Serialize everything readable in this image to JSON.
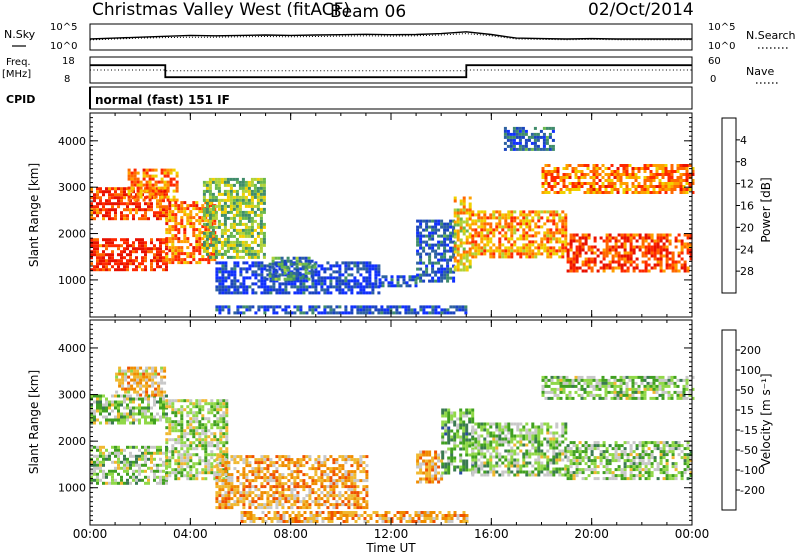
{
  "header": {
    "title": "Christmas Valley West (fitACF)",
    "beam": "Beam 06",
    "date": "02/Oct/2014"
  },
  "strips": {
    "nsky_label": "N.Sky",
    "nsky_ticks": [
      "10^5",
      "10^0"
    ],
    "nsearch_label": "N.Search",
    "nsearch_ticks": [
      "10^5",
      "10^0"
    ],
    "freq_label": "Freq.",
    "freq_unit": "[MHz]",
    "freq_ticks": [
      "18",
      "8"
    ],
    "nave_label": "Nave",
    "nave_ticks": [
      "60",
      "0"
    ],
    "cpid_label": "CPID",
    "cpid_text": "normal (fast) 151 IF"
  },
  "chart_data": [
    {
      "type": "line",
      "title": "",
      "series": [
        {
          "name": "N.Sky",
          "style": "solid",
          "values": [
            0.5,
            0.55,
            0.6,
            0.65,
            0.7,
            0.68,
            0.7,
            0.72,
            0.7,
            0.72,
            0.74,
            0.76,
            0.74,
            0.75,
            0.8,
            0.9,
            0.75,
            0.55,
            0.52,
            0.5,
            0.52,
            0.5,
            0.5,
            0.5,
            0.5
          ]
        },
        {
          "name": "N.Search",
          "style": "dotted",
          "values": [
            0.45,
            0.5,
            0.55,
            0.58,
            0.6,
            0.6,
            0.62,
            0.64,
            0.62,
            0.64,
            0.66,
            0.68,
            0.66,
            0.68,
            0.72,
            0.8,
            0.68,
            0.5,
            0.48,
            0.46,
            0.48,
            0.46,
            0.46,
            0.46,
            0.46
          ]
        }
      ],
      "x": [
        0,
        1,
        2,
        3,
        4,
        5,
        6,
        7,
        8,
        9,
        10,
        11,
        12,
        13,
        14,
        15,
        16,
        17,
        18,
        19,
        20,
        21,
        22,
        23,
        24
      ]
    },
    {
      "type": "line",
      "title": "",
      "series": [
        {
          "name": "Freq.",
          "style": "solid",
          "steps": [
            [
              0,
              3,
              15
            ],
            [
              3,
              15,
              10
            ],
            [
              15,
              24,
              15
            ]
          ]
        },
        {
          "name": "Nave",
          "style": "dotted",
          "steps": [
            [
              0,
              3,
              30
            ],
            [
              3,
              15,
              28
            ],
            [
              15,
              24,
              30
            ]
          ]
        }
      ],
      "ylim_freq": [
        8,
        18
      ],
      "ylim_nave": [
        0,
        60
      ]
    },
    {
      "type": "heatmap",
      "title": "",
      "ylabel": "Slant Range [km]",
      "yticks": [
        "1000",
        "2000",
        "3000",
        "4000"
      ],
      "ylim": [
        200,
        4600
      ],
      "xlim": [
        0,
        24
      ],
      "colorbar": {
        "label": "Power [dB]",
        "ticks": [
          "4",
          "8",
          "12",
          "16",
          "20",
          "24",
          "28"
        ],
        "colors": [
          "#1030ff",
          "#1a44c0",
          "#2e62a0",
          "#3f8c6a",
          "#6ab84a",
          "#b0d238",
          "#f0d000",
          "#ffa000",
          "#ff6800",
          "#ff2800",
          "#e81000"
        ]
      },
      "regions": [
        {
          "x": [
            0.0,
            3.0
          ],
          "y": [
            1200,
            1900
          ],
          "level": 0.9
        },
        {
          "x": [
            0.0,
            3.0
          ],
          "y": [
            2300,
            3000
          ],
          "level": 0.85
        },
        {
          "x": [
            1.5,
            3.5
          ],
          "y": [
            2700,
            3400
          ],
          "level": 0.75
        },
        {
          "x": [
            3.0,
            5.0
          ],
          "y": [
            1400,
            2700
          ],
          "level": 0.75
        },
        {
          "x": [
            4.5,
            7.0
          ],
          "y": [
            1500,
            3200
          ],
          "level": 0.45
        },
        {
          "x": [
            5.0,
            11.5
          ],
          "y": [
            700,
            1400
          ],
          "level": 0.12
        },
        {
          "x": [
            7.0,
            9.0
          ],
          "y": [
            1000,
            1500
          ],
          "level": 0.3
        },
        {
          "x": [
            11.5,
            13.0
          ],
          "y": [
            900,
            1100
          ],
          "level": 0.15
        },
        {
          "x": [
            13.0,
            14.5
          ],
          "y": [
            1000,
            2300
          ],
          "level": 0.2
        },
        {
          "x": [
            14.5,
            15.2
          ],
          "y": [
            1200,
            2800
          ],
          "level": 0.6
        },
        {
          "x": [
            15.2,
            19.0
          ],
          "y": [
            1500,
            2500
          ],
          "level": 0.7
        },
        {
          "x": [
            19.0,
            24.0
          ],
          "y": [
            1200,
            2000
          ],
          "level": 0.85
        },
        {
          "x": [
            18.0,
            24.0
          ],
          "y": [
            2900,
            3500
          ],
          "level": 0.75
        },
        {
          "x": [
            16.5,
            18.5
          ],
          "y": [
            3800,
            4300
          ],
          "level": 0.2
        },
        {
          "x": [
            5.0,
            15.0
          ],
          "y": [
            300,
            450
          ],
          "level": 0.15
        }
      ]
    },
    {
      "type": "heatmap",
      "title": "",
      "ylabel": "Slant Range [km]",
      "yticks": [
        "1000",
        "2000",
        "3000",
        "4000"
      ],
      "ylim": [
        200,
        4600
      ],
      "xlim": [
        0,
        24
      ],
      "colorbar": {
        "label": "Velocity [m s⁻¹]",
        "ticks": [
          "200",
          "100",
          "50",
          "15",
          "-15",
          "-50",
          "-100",
          "-200"
        ],
        "colors": [
          "#1a2aa8",
          "#2a4aa0",
          "#3a7a50",
          "#40a020",
          "#90d848",
          "#c8c8c8",
          "#f0b830",
          "#f08c00",
          "#f05000",
          "#e81000"
        ]
      },
      "regions": [
        {
          "x": [
            0.0,
            3.0
          ],
          "y": [
            1100,
            1900
          ],
          "level": 0.45
        },
        {
          "x": [
            0.0,
            3.0
          ],
          "y": [
            2400,
            3000
          ],
          "level": 0.45
        },
        {
          "x": [
            1.0,
            3.0
          ],
          "y": [
            3000,
            3600
          ],
          "level": 0.65
        },
        {
          "x": [
            3.0,
            5.5
          ],
          "y": [
            1200,
            2900
          ],
          "level": 0.5
        },
        {
          "x": [
            5.0,
            11.0
          ],
          "y": [
            600,
            1700
          ],
          "level": 0.7
        },
        {
          "x": [
            13.0,
            14.0
          ],
          "y": [
            1100,
            1800
          ],
          "level": 0.7
        },
        {
          "x": [
            14.0,
            15.2
          ],
          "y": [
            1300,
            2700
          ],
          "level": 0.35
        },
        {
          "x": [
            15.2,
            19.0
          ],
          "y": [
            1300,
            2400
          ],
          "level": 0.45
        },
        {
          "x": [
            19.0,
            24.0
          ],
          "y": [
            1200,
            2000
          ],
          "level": 0.45
        },
        {
          "x": [
            18.0,
            24.0
          ],
          "y": [
            2900,
            3400
          ],
          "level": 0.45
        },
        {
          "x": [
            6.0,
            15.0
          ],
          "y": [
            300,
            500
          ],
          "level": 0.7
        }
      ]
    }
  ],
  "xaxis": {
    "label": "Time UT",
    "ticks": [
      "00:00",
      "04:00",
      "08:00",
      "12:00",
      "16:00",
      "20:00",
      "00:00"
    ]
  }
}
